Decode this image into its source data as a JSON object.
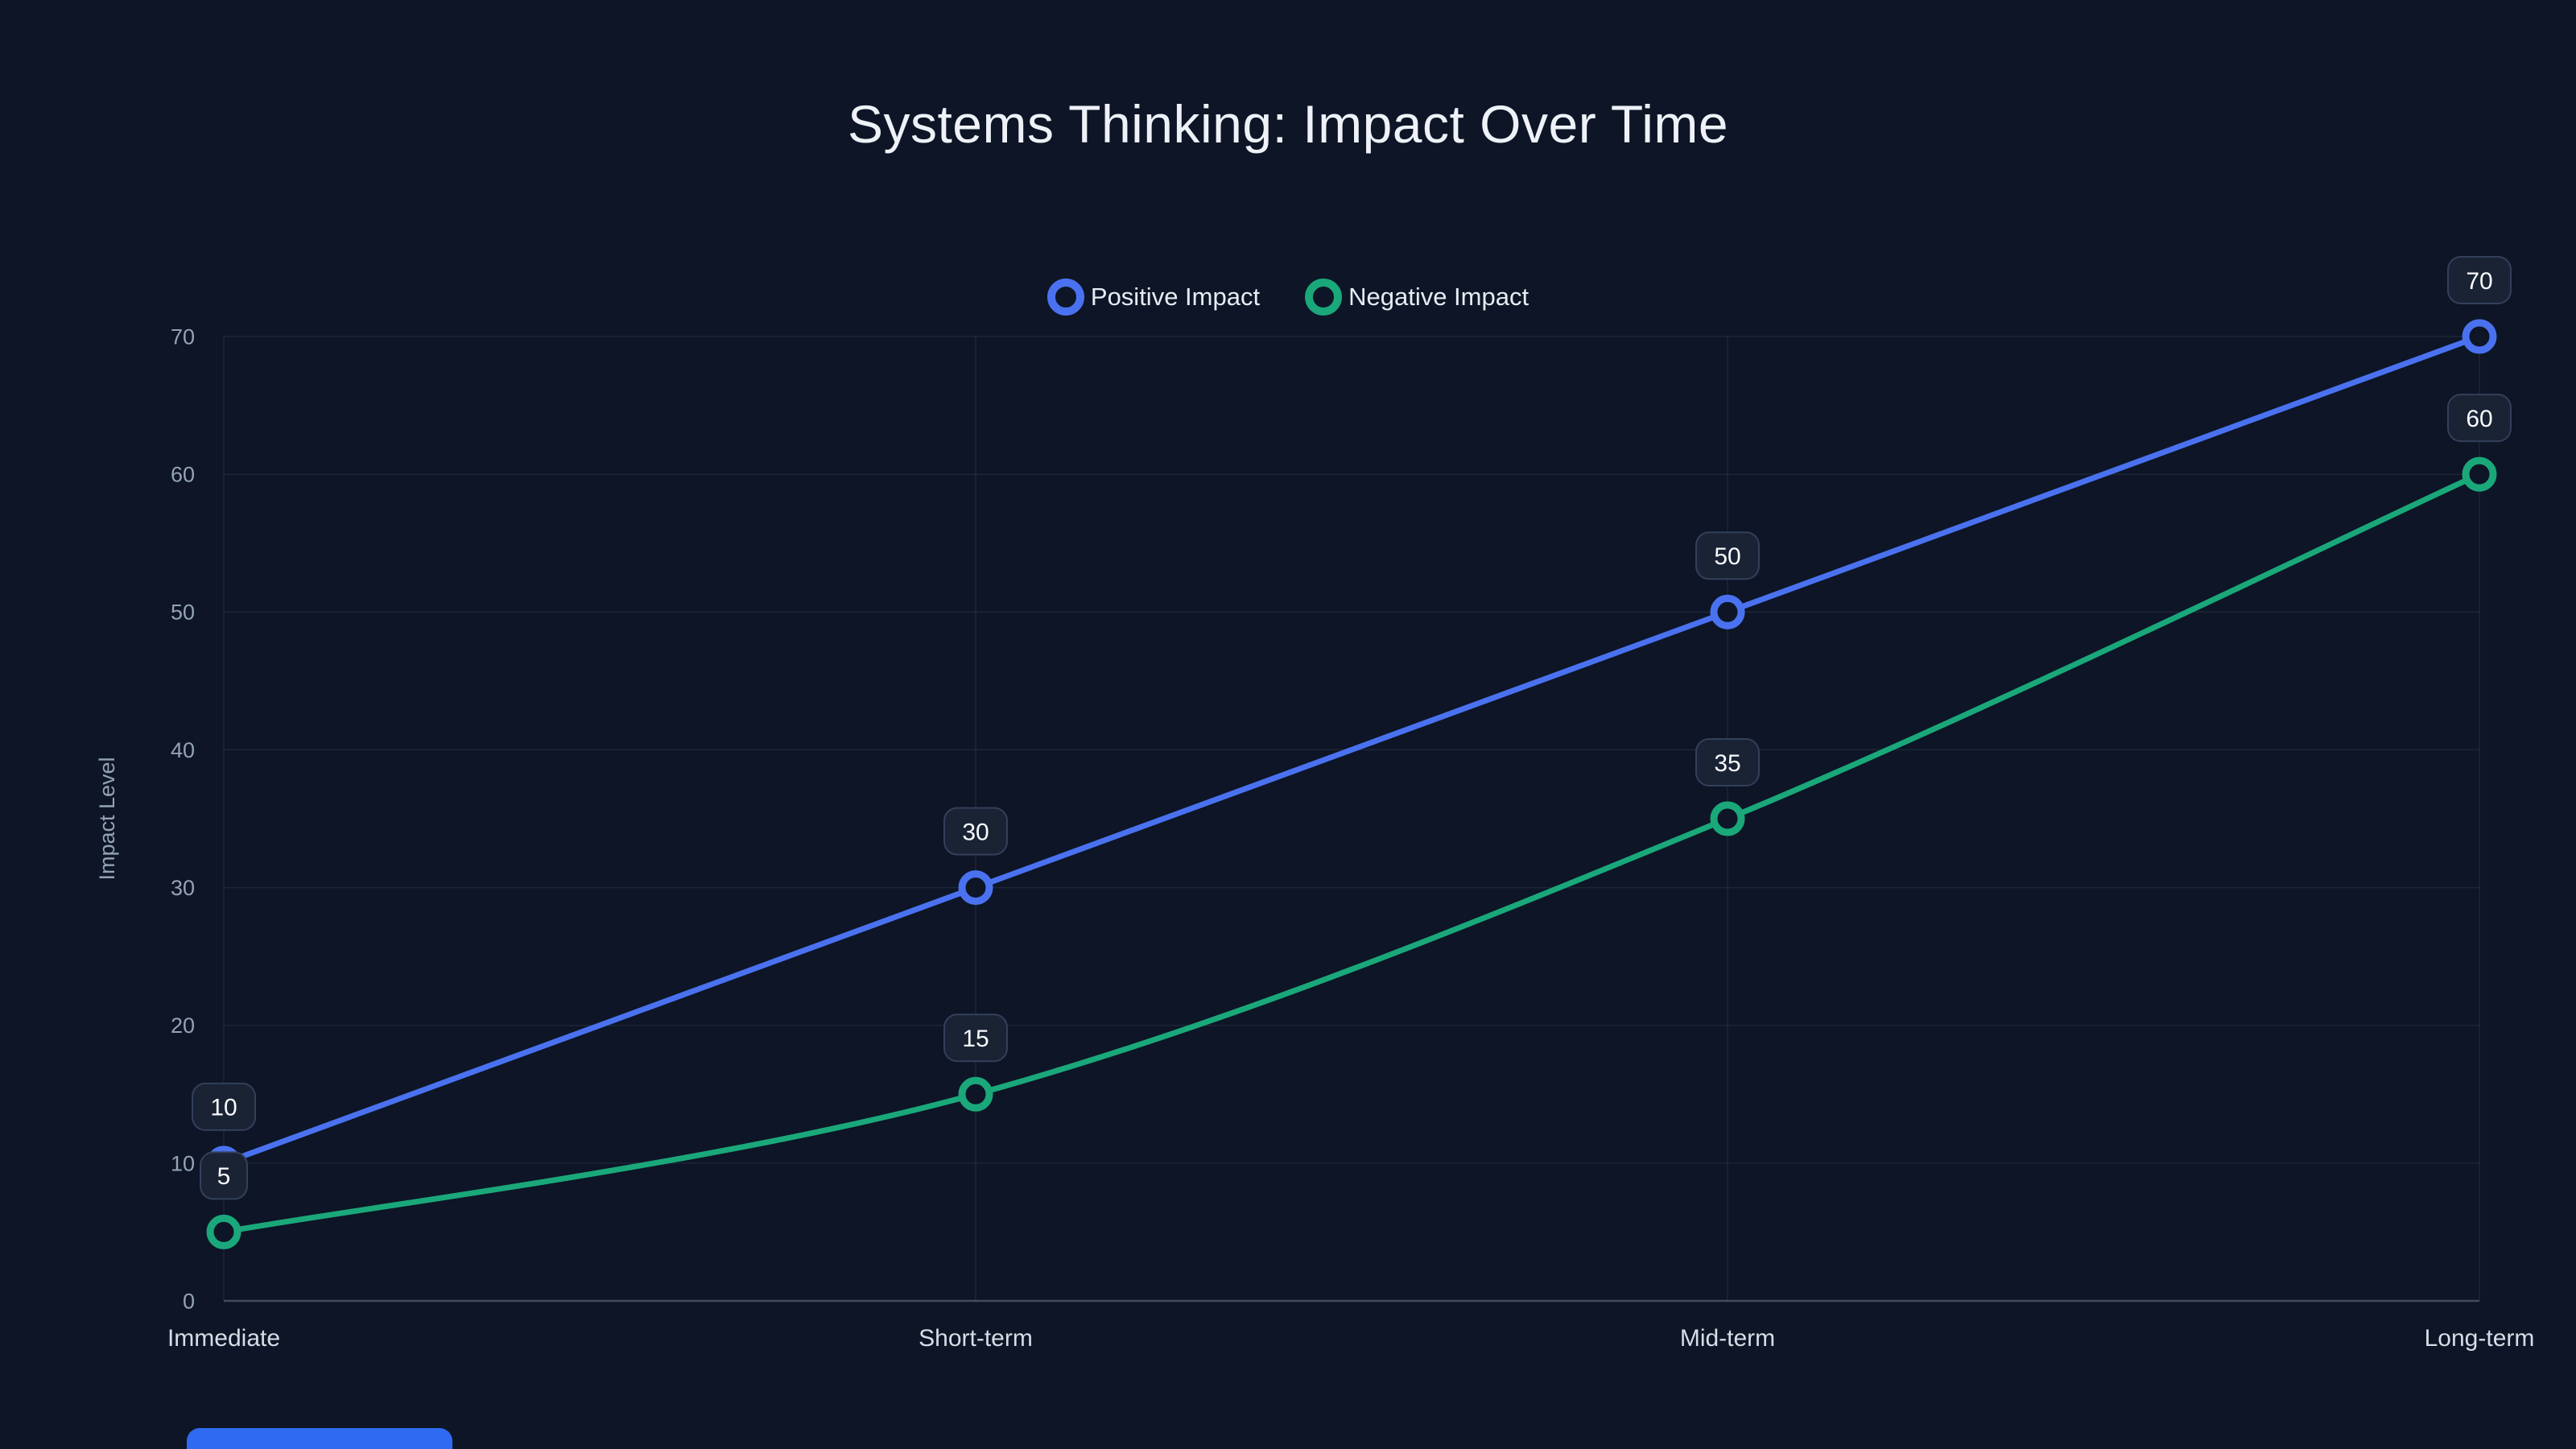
{
  "title": "Systems Thinking: Impact Over Time",
  "colors": {
    "background": "#0d1526",
    "grid": "rgba(148,163,184,0.12)",
    "axis_line": "rgba(148,163,184,0.38)",
    "tick_text": "#94a3b8",
    "category_text": "#d7dde6",
    "label_box_bg": "#1a2334",
    "label_box_border": "#32405a",
    "label_text": "#f8fafc",
    "accent_bar": "#2f6bf0"
  },
  "chart_data": {
    "type": "line",
    "title": "Systems Thinking: Impact Over Time",
    "xlabel": "",
    "ylabel": "Impact Level",
    "categories": [
      "Immediate",
      "Short-term",
      "Mid-term",
      "Long-term"
    ],
    "series": [
      {
        "name": "Positive Impact",
        "color": "#4a72f0",
        "values": [
          10,
          30,
          50,
          70
        ]
      },
      {
        "name": "Negative Impact",
        "color": "#1aa87a",
        "values": [
          5,
          15,
          35,
          60
        ]
      }
    ],
    "y_ticks": [
      0,
      10,
      20,
      30,
      40,
      50,
      60,
      70
    ],
    "ylim": [
      0,
      70
    ],
    "grid": true,
    "legend_position": "top-center",
    "point_labels": true,
    "curve": "smooth"
  }
}
